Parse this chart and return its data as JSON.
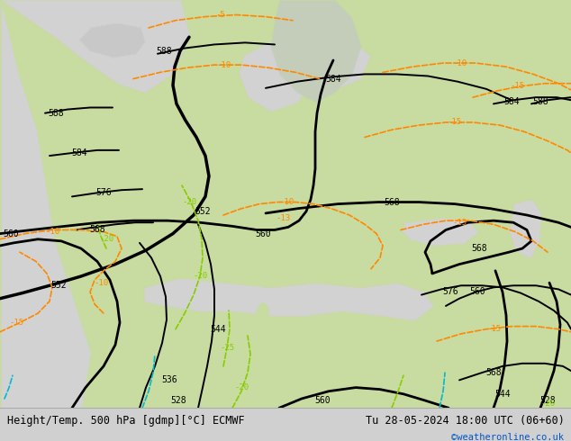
{
  "title_left": "Height/Temp. 500 hPa [gdmp][°C] ECMWF",
  "title_right": "Tu 28-05-2024 18:00 UTC (06+60)",
  "credit": "©weatheronline.co.uk",
  "land_color": [
    200,
    219,
    160
  ],
  "sea_color": [
    210,
    210,
    210
  ],
  "fig_bg_color": "#d0d0d0",
  "bottom_bar_color": "#f0f0f0",
  "z500_color": "#000000",
  "temp_orange_color": "#ff8800",
  "temp_green_color": "#88cc00",
  "temp_cyan_color": "#00bbcc",
  "label_fontsize": 7,
  "title_fontsize": 8.5,
  "credit_fontsize": 7.5,
  "figsize": [
    6.34,
    4.9
  ],
  "dpi": 100
}
